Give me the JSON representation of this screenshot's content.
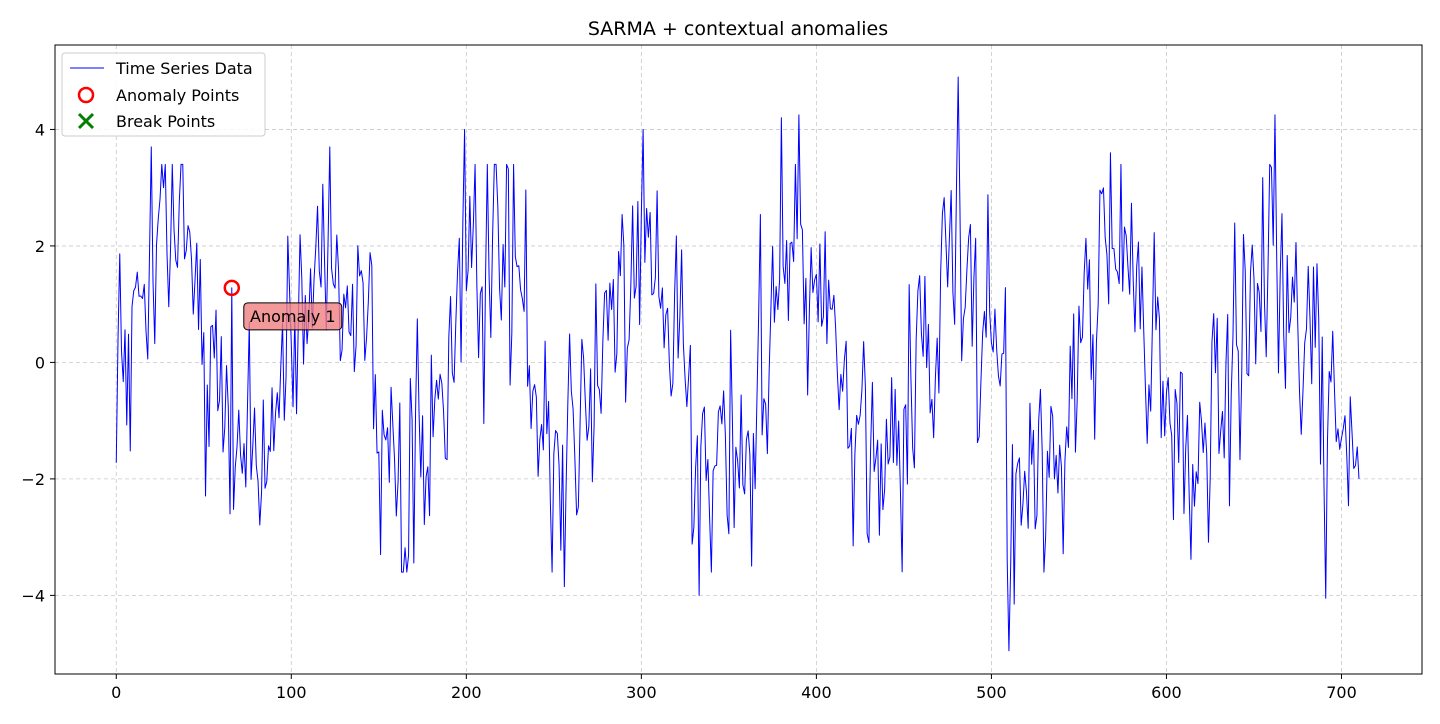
{
  "chart_data": {
    "type": "line",
    "title": "SARMA + contextual anomalies",
    "xlabel": "",
    "ylabel": "",
    "xlim": [
      -35,
      746
    ],
    "ylim": [
      -5.35,
      5.45
    ],
    "grid": true,
    "grid_style": "dashed",
    "legend_position": "upper-left",
    "x_ticks": [
      0,
      100,
      200,
      300,
      400,
      500,
      600,
      700
    ],
    "y_ticks": [
      -4,
      -2,
      0,
      2,
      4
    ],
    "x_tick_labels": [
      "0",
      "100",
      "200",
      "300",
      "400",
      "500",
      "600",
      "700"
    ],
    "y_tick_labels": [
      "−4",
      "−2",
      "0",
      "2",
      "4"
    ],
    "series_color": "#0000ff",
    "anomaly_color": "#ff0000",
    "break_color": "#008000",
    "annotation_fill": "#f08080",
    "series": [
      {
        "name": "Time Series Data",
        "type": "line",
        "x_start": 0,
        "x_end": 710,
        "seasonal_period": 90,
        "seasonal_peaks": [
          {
            "x": 20,
            "y": 3.7
          },
          {
            "x": 122,
            "y": 3.7
          },
          {
            "x": 199,
            "y": 4.0
          },
          {
            "x": 301,
            "y": 4.0
          },
          {
            "x": 380,
            "y": 4.2
          },
          {
            "x": 390,
            "y": 4.25
          },
          {
            "x": 481,
            "y": 4.9
          },
          {
            "x": 568,
            "y": 3.6
          },
          {
            "x": 662,
            "y": 4.25
          }
        ],
        "seasonal_troughs": [
          {
            "x": 65,
            "y": -2.6
          },
          {
            "x": 151,
            "y": -3.3
          },
          {
            "x": 256,
            "y": -3.85
          },
          {
            "x": 333,
            "y": -4.0
          },
          {
            "x": 421,
            "y": -3.15
          },
          {
            "x": 510,
            "y": -4.95
          },
          {
            "x": 513,
            "y": -4.15
          },
          {
            "x": 604,
            "y": -2.7
          },
          {
            "x": 691,
            "y": -4.05
          }
        ],
        "last_point": {
          "x": 710,
          "y": -2.0
        }
      },
      {
        "name": "Anomaly Points",
        "type": "scatter",
        "marker": "open-circle",
        "points": [
          {
            "x": 66,
            "y": 1.28
          }
        ]
      },
      {
        "name": "Break Points",
        "type": "scatter",
        "marker": "x",
        "points": []
      }
    ],
    "annotations": [
      {
        "text": "Anomaly 1",
        "x": 66,
        "y": 1.28
      }
    ]
  }
}
